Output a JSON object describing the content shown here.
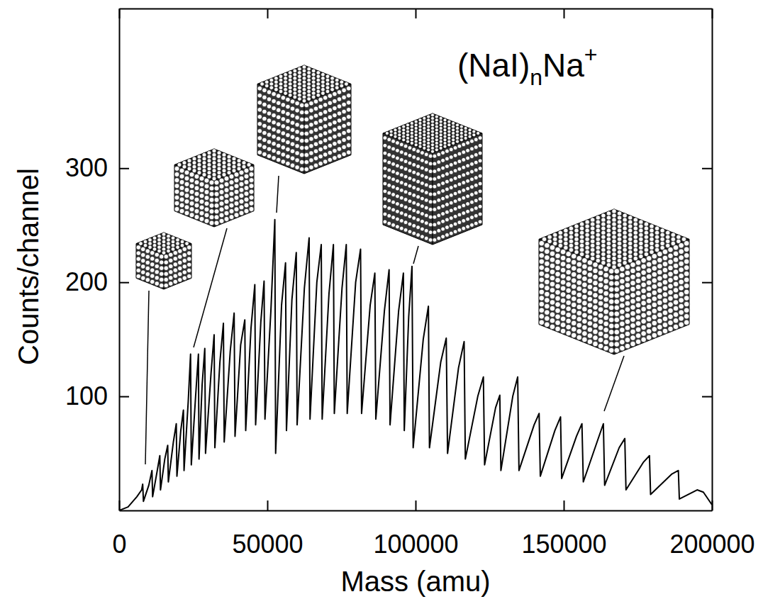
{
  "chart_data": {
    "type": "line",
    "title": "(NaI)nNa+",
    "xlabel": "Mass (amu)",
    "ylabel": "Counts/channel",
    "color": "#000000",
    "x": [
      0,
      3000,
      6000,
      7600,
      7950,
      8200,
      10000,
      11080,
      11300,
      12800,
      13730,
      13950,
      15400,
      16390,
      16600,
      18300,
      19280,
      19500,
      20800,
      21690,
      21900,
      23300,
      24100,
      24350,
      25800,
      26750,
      26950,
      28000,
      28900,
      29150,
      31000,
      32050,
      32300,
      34000,
      35180,
      35450,
      37500,
      38800,
      39100,
      41000,
      42400,
      42700,
      44500,
      45780,
      46050,
      47800,
      48900,
      49200,
      51200,
      52530,
      52800,
      54800,
      56140,
      56450,
      58300,
      59760,
      60050,
      62500,
      64100,
      64400,
      66700,
      68190,
      68500,
      70800,
      72290,
      72600,
      75200,
      76630,
      76950,
      79800,
      81450,
      81800,
      84700,
      86270,
      86600,
      89500,
      91080,
      91400,
      94300,
      95900,
      96200,
      97700,
      98800,
      99200,
      102600,
      104340,
      104700,
      108500,
      110360,
      110800,
      114500,
      116390,
      116800,
      121000,
      122890,
      123300,
      127000,
      128430,
      128800,
      132800,
      134460,
      134900,
      140000,
      141690,
      142100,
      147000,
      148920,
      149300,
      154300,
      156140,
      156600,
      161500,
      163370,
      163800,
      168700,
      170600,
      171000,
      176800,
      178920,
      179300,
      186500,
      188670,
      189000,
      195000,
      197110,
      200000
    ],
    "values": [
      0,
      3,
      12,
      18,
      23,
      8,
      22,
      35,
      12,
      34,
      48,
      18,
      45,
      57,
      25,
      60,
      76,
      30,
      70,
      88,
      35,
      95,
      137,
      40,
      100,
      137,
      45,
      110,
      142,
      50,
      120,
      154,
      55,
      130,
      164,
      60,
      140,
      173,
      65,
      145,
      167,
      70,
      160,
      198,
      75,
      165,
      201,
      80,
      175,
      255,
      50,
      180,
      217,
      70,
      185,
      226,
      75,
      195,
      239,
      80,
      200,
      233,
      80,
      190,
      233,
      85,
      195,
      233,
      85,
      200,
      229,
      85,
      180,
      208,
      80,
      175,
      211,
      75,
      175,
      208,
      70,
      170,
      214,
      55,
      150,
      179,
      55,
      130,
      151,
      50,
      125,
      148,
      45,
      100,
      117,
      40,
      90,
      101,
      35,
      100,
      117,
      35,
      75,
      85,
      30,
      70,
      82,
      28,
      65,
      76,
      25,
      62,
      76,
      22,
      55,
      63,
      18,
      42,
      48,
      14,
      32,
      35,
      10,
      18,
      16,
      5
    ],
    "xlim": [
      0,
      200000
    ],
    "ylim": [
      0,
      440
    ],
    "xticks": [
      0,
      50000,
      100000,
      150000,
      200000
    ],
    "yticks": [
      100,
      200,
      300
    ]
  }
}
